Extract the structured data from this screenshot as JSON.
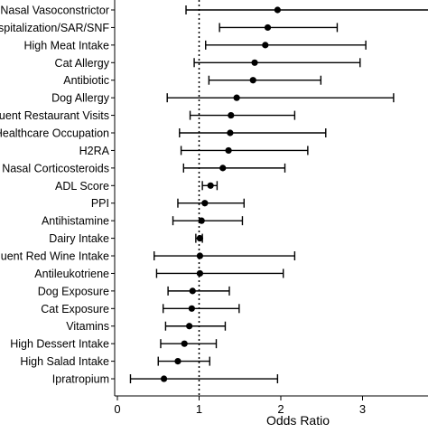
{
  "chart_data": {
    "type": "forest",
    "xlabel": "Odds Ratio",
    "x_ticks": [
      0,
      1,
      2,
      3
    ],
    "xlim": [
      0,
      3.9
    ],
    "reference_line": 1,
    "categories": [
      "Nasal Vasoconstrictor",
      "Hospitalization/SAR/SNF",
      "High Meat Intake",
      "Cat Allergy",
      "Antibiotic",
      "Dog Allergy",
      "Frequent Restaurant Visits",
      "Healthcare Occupation",
      "H2RA",
      "Nasal Corticosteroids",
      "ADL Score",
      "PPI",
      "Antihistamine",
      "Dairy Intake",
      "Frequent Red Wine Intake",
      "Antileukotriene",
      "Dog Exposure",
      "Cat Exposure",
      "Vitamins",
      "High Dessert Intake",
      "High Salad Intake",
      "Ipratropium"
    ],
    "odds_ratio": [
      1.96,
      1.84,
      1.81,
      1.68,
      1.66,
      1.46,
      1.39,
      1.38,
      1.36,
      1.29,
      1.14,
      1.07,
      1.03,
      1.01,
      1.01,
      1.01,
      0.92,
      0.91,
      0.88,
      0.82,
      0.74,
      0.57
    ],
    "ci_lower": [
      0.84,
      1.25,
      1.08,
      0.94,
      1.12,
      0.61,
      0.89,
      0.76,
      0.78,
      0.81,
      1.04,
      0.74,
      0.68,
      0.96,
      0.45,
      0.48,
      0.62,
      0.56,
      0.59,
      0.53,
      0.5,
      0.16
    ],
    "ci_upper": [
      3.9,
      2.69,
      3.04,
      2.97,
      2.49,
      3.38,
      2.17,
      2.55,
      2.33,
      2.05,
      1.22,
      1.55,
      1.53,
      1.04,
      2.17,
      2.03,
      1.37,
      1.49,
      1.32,
      1.21,
      1.13,
      1.96
    ],
    "grid": false,
    "legend": "none"
  }
}
